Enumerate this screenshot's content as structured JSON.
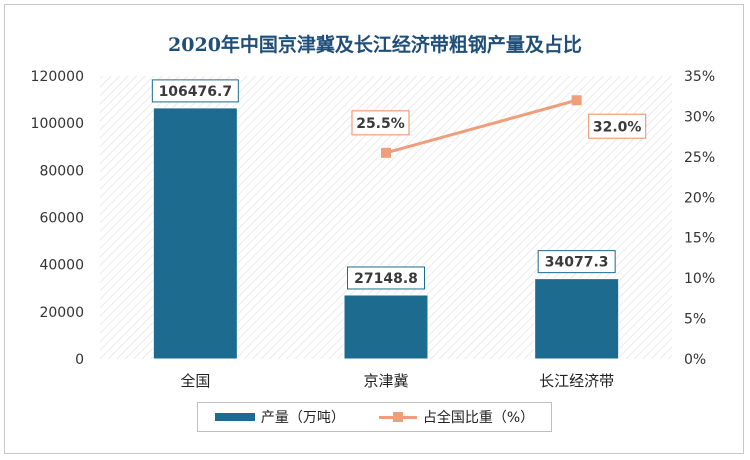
{
  "chart_data": {
    "type": "bar",
    "title": "2020年中国京津冀及长江经济带粗钢产量及占比",
    "categories": [
      "全国",
      "京津冀",
      "长江经济带"
    ],
    "series": [
      {
        "name": "产量（万吨）",
        "type": "bar",
        "axis": "left",
        "values": [
          106476.7,
          27148.8,
          34077.3
        ],
        "labels": [
          "106476.7",
          "27148.8",
          "34077.3"
        ],
        "color": "#1d6b8e"
      },
      {
        "name": "占全国比重（%）",
        "type": "line",
        "axis": "right",
        "values": [
          null,
          25.5,
          32.0
        ],
        "labels": [
          "",
          "25.5%",
          "32.0%"
        ],
        "color": "#ef9e7b"
      }
    ],
    "left_axis": {
      "ylim": [
        0,
        120000
      ],
      "ticks": [
        "0",
        "20000",
        "40000",
        "60000",
        "80000",
        "100000",
        "120000"
      ]
    },
    "right_axis": {
      "ylim": [
        0,
        35
      ],
      "ticks": [
        "0%",
        "5%",
        "10%",
        "15%",
        "20%",
        "25%",
        "30%",
        "35%"
      ]
    },
    "grid": false,
    "legend_position": "bottom"
  }
}
